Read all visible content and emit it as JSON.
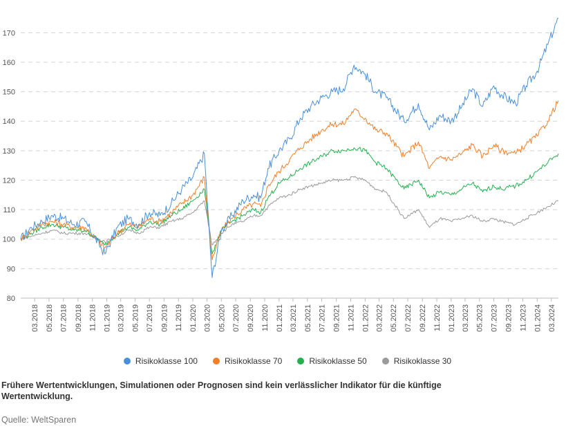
{
  "chart_data": {
    "type": "line",
    "title": "",
    "xlabel": "",
    "ylabel": "",
    "ylim": [
      80,
      175
    ],
    "yticks": [
      80,
      90,
      100,
      110,
      120,
      130,
      140,
      150,
      160,
      170
    ],
    "xlim": [
      "2018-01-01",
      "2024-03-31"
    ],
    "xtick_labels": [
      "03.2018",
      "05.2018",
      "07.2018",
      "09.2018",
      "11.2018",
      "01.2019",
      "03.2019",
      "05.2019",
      "07.2019",
      "09.2019",
      "11.2019",
      "01.2020",
      "03.2020",
      "05.2020",
      "07.2020",
      "09.2020",
      "11.2020",
      "01.2021",
      "03.2021",
      "05.2021",
      "07.2021",
      "09.2021",
      "11.2021",
      "01.2022",
      "03.2022",
      "05.2022",
      "07.2022",
      "09.2022",
      "11.2022",
      "01.2023",
      "03.2023",
      "05.2023",
      "07.2023",
      "09.2023",
      "11.2023",
      "01.2024",
      "03.2024"
    ],
    "xtick_dates": [
      "2018-03-01",
      "2018-05-01",
      "2018-07-01",
      "2018-09-01",
      "2018-11-01",
      "2019-01-01",
      "2019-03-01",
      "2019-05-01",
      "2019-07-01",
      "2019-09-01",
      "2019-11-01",
      "2020-01-01",
      "2020-03-01",
      "2020-05-01",
      "2020-07-01",
      "2020-09-01",
      "2020-11-01",
      "2021-01-01",
      "2021-03-01",
      "2021-05-01",
      "2021-07-01",
      "2021-09-01",
      "2021-11-01",
      "2022-01-01",
      "2022-03-01",
      "2022-05-01",
      "2022-07-01",
      "2022-09-01",
      "2022-11-01",
      "2023-01-01",
      "2023-03-01",
      "2023-05-01",
      "2023-07-01",
      "2023-09-01",
      "2023-11-01",
      "2024-01-01",
      "2024-03-01"
    ],
    "grid": true,
    "legend_position": "bottom",
    "x": [
      "2018-01-01",
      "2018-02-15",
      "2018-04-01",
      "2018-05-15",
      "2018-07-01",
      "2018-08-15",
      "2018-10-01",
      "2018-12-24",
      "2019-02-15",
      "2019-04-01",
      "2019-05-15",
      "2019-07-01",
      "2019-08-15",
      "2019-10-01",
      "2019-11-15",
      "2020-01-01",
      "2020-02-19",
      "2020-03-23",
      "2020-05-01",
      "2020-06-15",
      "2020-08-01",
      "2020-09-15",
      "2020-10-15",
      "2020-11-15",
      "2021-01-01",
      "2021-02-15",
      "2021-04-01",
      "2021-05-15",
      "2021-07-01",
      "2021-08-15",
      "2021-10-01",
      "2021-11-15",
      "2022-01-01",
      "2022-02-15",
      "2022-04-01",
      "2022-06-15",
      "2022-08-15",
      "2022-10-01",
      "2022-11-15",
      "2023-01-01",
      "2023-02-15",
      "2023-04-01",
      "2023-05-15",
      "2023-07-01",
      "2023-08-01",
      "2023-10-01",
      "2023-11-15",
      "2024-01-01",
      "2024-02-15",
      "2024-03-31"
    ],
    "series": [
      {
        "name": "Risikoklasse 100",
        "color": "#4a90d9",
        "values": [
          100,
          104,
          106,
          108,
          107,
          105,
          106,
          95,
          104,
          107,
          105,
          109,
          108,
          112,
          117,
          121,
          129,
          87,
          103,
          108,
          113,
          115,
          114,
          124,
          130,
          134,
          141,
          145,
          148,
          150,
          151,
          159,
          156,
          150,
          148,
          140,
          146,
          137,
          142,
          140,
          145,
          151,
          145,
          152,
          149,
          146,
          152,
          157,
          166,
          175
        ]
      },
      {
        "name": "Risikoklasse 70",
        "color": "#f07f2a",
        "values": [
          100,
          103,
          105,
          106,
          105,
          104,
          104,
          97,
          102,
          105,
          104,
          107,
          106,
          109,
          112,
          115,
          121,
          93,
          103,
          107,
          110,
          112,
          111,
          118,
          123,
          127,
          131,
          134,
          137,
          139,
          139,
          144,
          141,
          137,
          136,
          128,
          133,
          124,
          128,
          127,
          129,
          132,
          128,
          132,
          130,
          129,
          132,
          135,
          140,
          147
        ]
      },
      {
        "name": "Risikoklasse 50",
        "color": "#22b14c",
        "values": [
          100,
          102,
          104,
          105,
          104,
          103,
          103,
          98,
          102,
          104,
          103,
          106,
          105,
          108,
          110,
          113,
          117,
          95,
          103,
          106,
          108,
          110,
          109,
          114,
          119,
          121,
          124,
          126,
          128,
          130,
          130,
          131,
          130,
          126,
          124,
          117,
          120,
          114,
          116,
          115,
          117,
          119,
          116,
          118,
          117,
          118,
          120,
          123,
          126,
          129
        ]
      },
      {
        "name": "Risikoklasse 30",
        "color": "#9a9a9a",
        "values": [
          100,
          101,
          102,
          103,
          102,
          102,
          102,
          99,
          101,
          103,
          102,
          104,
          104,
          106,
          107,
          109,
          113,
          98,
          102,
          105,
          106,
          108,
          108,
          111,
          114,
          115,
          117,
          118,
          119,
          120,
          120,
          121,
          120,
          117,
          116,
          107,
          110,
          104,
          107,
          106,
          107,
          108,
          106,
          107,
          106,
          105,
          107,
          109,
          111,
          113
        ]
      }
    ]
  },
  "disclaimer": "Frühere Wertentwicklungen, Simulationen oder Prognosen sind kein verlässlicher Indikator für die künftige Wertentwicklung.",
  "source": "Quelle: WeltSparen"
}
